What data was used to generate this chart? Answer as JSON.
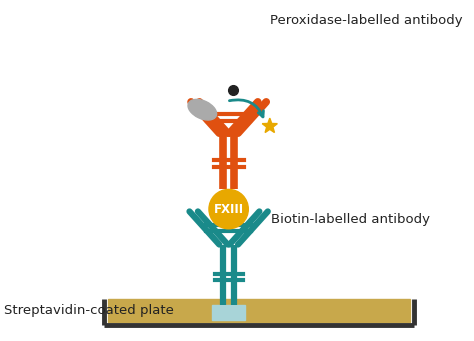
{
  "bg_color": "#ffffff",
  "teal": "#1a8a8a",
  "orange": "#e05010",
  "gold": "#e8a800",
  "gray": "#aaaaaa",
  "dark": "#222222",
  "plate_fill": "#c8a84b",
  "plate_edge": "#333333",
  "strep_fill": "#a8d4d8",
  "label_peroxidase": "Peroxidase-labelled antibody",
  "label_biotin": "Biotin-labelled antibody",
  "label_plate": "Streptavidin-coated plate",
  "label_fxiii": "FXIII",
  "font_size_main": 9.5,
  "font_size_fxiii": 8.5
}
